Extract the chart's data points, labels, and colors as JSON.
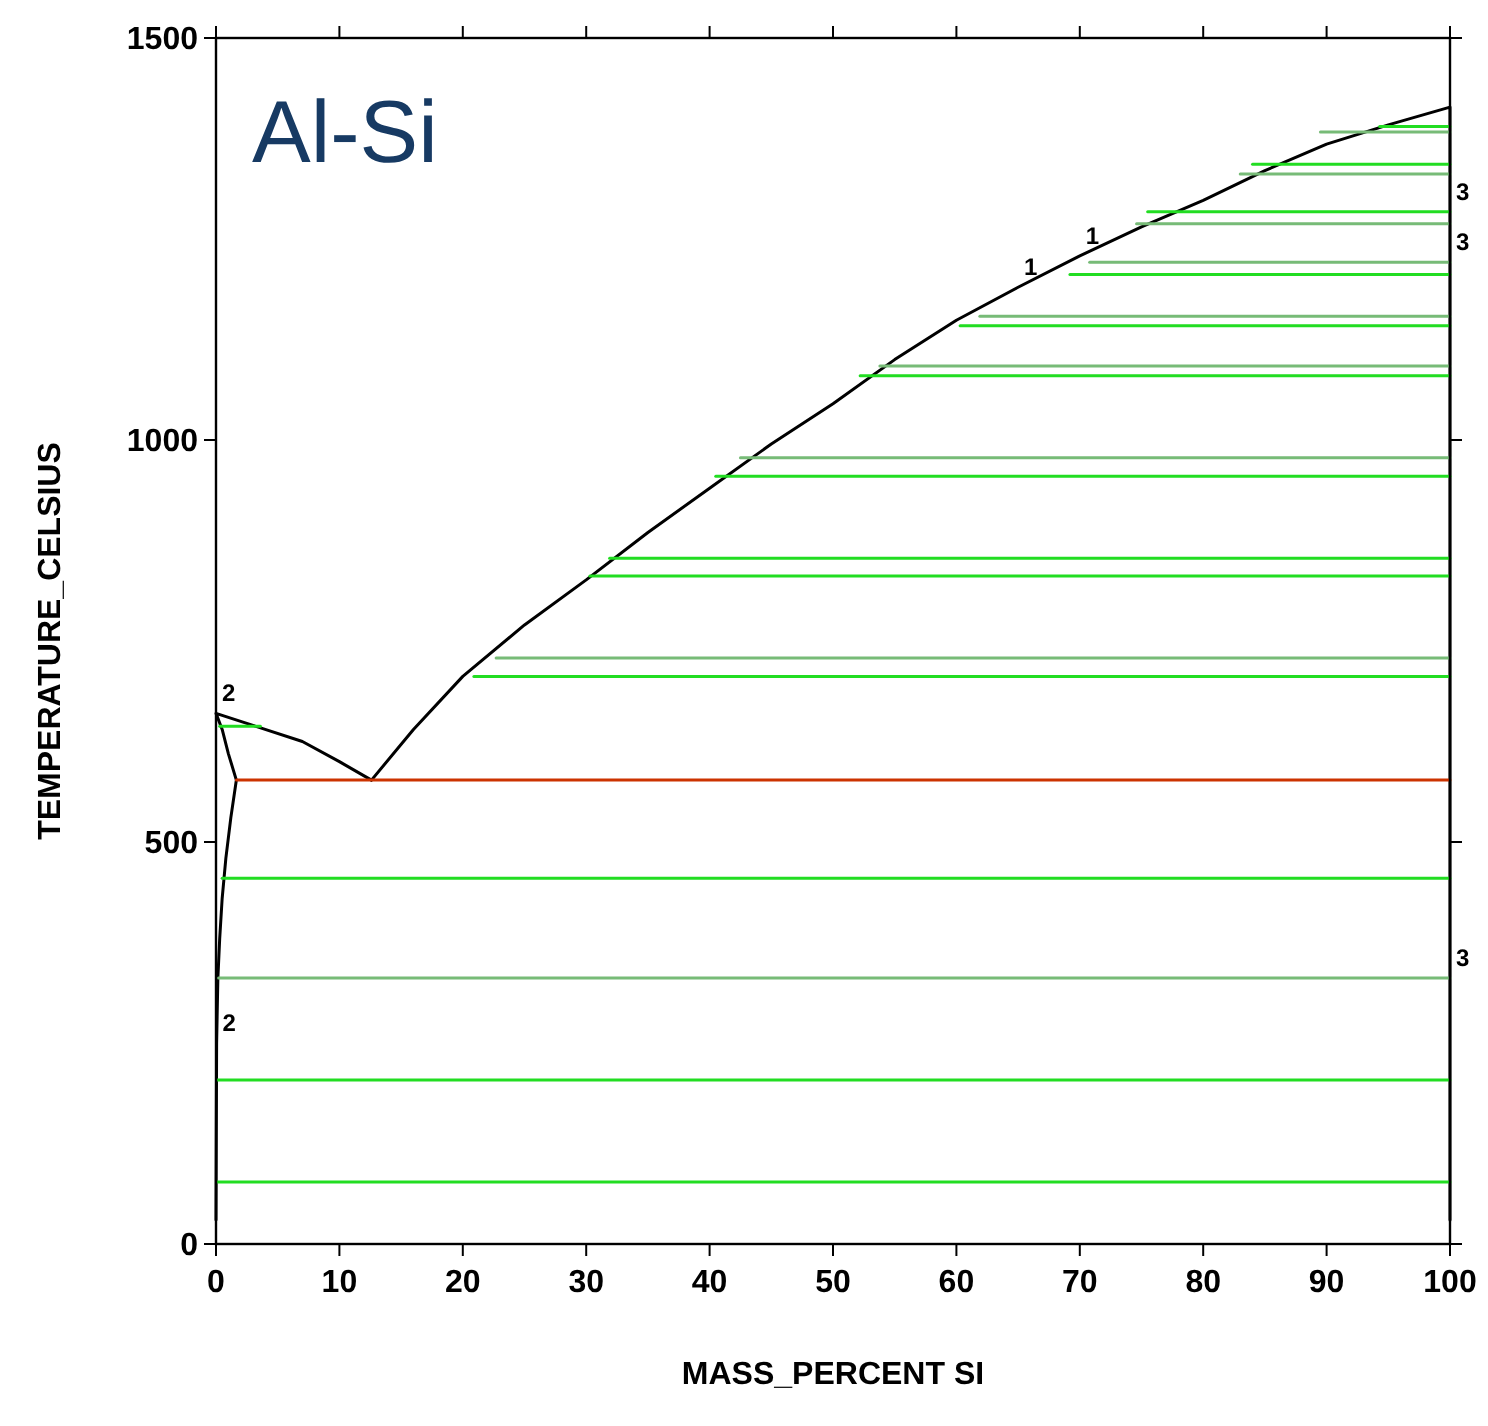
{
  "chart_data": {
    "type": "line",
    "title": "Al-Si",
    "xlabel": "MASS_PERCENT SI",
    "ylabel": "TEMPERATURE_CELSIUS",
    "xlim": [
      0,
      100
    ],
    "ylim": [
      0,
      1500
    ],
    "xticks": [
      0,
      10,
      20,
      30,
      40,
      50,
      60,
      70,
      80,
      90,
      100
    ],
    "yticks": [
      0,
      500,
      1000,
      1500
    ],
    "grid": false,
    "marker": "none",
    "line_style": "solid",
    "series": [
      {
        "color": "#000000",
        "x": [
          12.6,
          16,
          20,
          25,
          30,
          35,
          40,
          45,
          50,
          55,
          60,
          65,
          70,
          75,
          80,
          85,
          90,
          95,
          100,
          100
        ],
        "values": [
          577,
          640,
          706,
          770,
          826,
          885,
          940,
          995,
          1045,
          1100,
          1149,
          1190,
          1229,
          1265,
          1298,
          1335,
          1368,
          1392,
          1414,
          30
        ]
      },
      {
        "color": "#000000",
        "x": [
          12.6,
          10,
          7,
          3,
          0,
          0.5,
          1,
          1.65,
          1.2,
          0.8,
          0.5,
          0.3,
          0.15,
          0.05,
          0
        ],
        "values": [
          577,
          600,
          625,
          645,
          660,
          640,
          610,
          577,
          530,
          480,
          430,
          380,
          330,
          250,
          30
        ]
      },
      {
        "color": "#cc3300",
        "x": [
          1.65,
          100
        ],
        "values": [
          577,
          577
        ]
      },
      {
        "color": "#22dd22",
        "x": [
          94.3,
          100
        ],
        "values": [
          1390,
          1390
        ]
      },
      {
        "color": "#77bb77",
        "x": [
          89.5,
          100
        ],
        "values": [
          1383,
          1383
        ]
      },
      {
        "color": "#22dd22",
        "x": [
          84,
          100
        ],
        "values": [
          1343,
          1343
        ]
      },
      {
        "color": "#77bb77",
        "x": [
          83,
          100
        ],
        "values": [
          1331,
          1331
        ]
      },
      {
        "color": "#22dd22",
        "x": [
          75.5,
          100
        ],
        "values": [
          1284,
          1284
        ]
      },
      {
        "color": "#77bb77",
        "x": [
          74.6,
          100
        ],
        "values": [
          1269,
          1269
        ]
      },
      {
        "color": "#77bb77",
        "x": [
          70.8,
          100
        ],
        "values": [
          1221,
          1221
        ]
      },
      {
        "color": "#22dd22",
        "x": [
          69.2,
          100
        ],
        "values": [
          1206,
          1206
        ]
      },
      {
        "color": "#77bb77",
        "x": [
          61.9,
          100
        ],
        "values": [
          1154,
          1154
        ]
      },
      {
        "color": "#22dd22",
        "x": [
          60.3,
          100
        ],
        "values": [
          1142,
          1142
        ]
      },
      {
        "color": "#77bb77",
        "x": [
          53.8,
          100
        ],
        "values": [
          1092,
          1092
        ]
      },
      {
        "color": "#22dd22",
        "x": [
          52.2,
          100
        ],
        "values": [
          1080,
          1080
        ]
      },
      {
        "color": "#77bb77",
        "x": [
          42.5,
          100
        ],
        "values": [
          978,
          978
        ]
      },
      {
        "color": "#22dd22",
        "x": [
          40.5,
          100
        ],
        "values": [
          955,
          955
        ]
      },
      {
        "color": "#22dd22",
        "x": [
          31.9,
          100
        ],
        "values": [
          853,
          853
        ]
      },
      {
        "color": "#22dd22",
        "x": [
          30.3,
          100
        ],
        "values": [
          831,
          831
        ]
      },
      {
        "color": "#77bb77",
        "x": [
          22.7,
          100
        ],
        "values": [
          729,
          729
        ]
      },
      {
        "color": "#22dd22",
        "x": [
          20.9,
          100
        ],
        "values": [
          706,
          706
        ]
      },
      {
        "color": "#22dd22",
        "x": [
          0.3,
          3.6
        ],
        "values": [
          644,
          644
        ]
      },
      {
        "color": "#22dd22",
        "x": [
          0.5,
          100
        ],
        "values": [
          455,
          455
        ]
      },
      {
        "color": "#77bb77",
        "x": [
          0.2,
          100
        ],
        "values": [
          331,
          331
        ]
      },
      {
        "color": "#22dd22",
        "x": [
          0.1,
          100
        ],
        "values": [
          204,
          204
        ]
      },
      {
        "color": "#22dd22",
        "x": [
          0.05,
          100
        ],
        "values": [
          77,
          77
        ]
      }
    ],
    "annotations": [
      {
        "text": "1",
        "x": 65,
        "y": 1190
      },
      {
        "text": "1",
        "x": 70,
        "y": 1229
      },
      {
        "text": "2",
        "x": 0,
        "y": 660
      },
      {
        "text": "2",
        "x": 0.05,
        "y": 250
      },
      {
        "text": "3",
        "x": 100,
        "y": 1284
      },
      {
        "text": "3",
        "x": 100,
        "y": 1221
      },
      {
        "text": "3",
        "x": 100,
        "y": 331
      }
    ]
  }
}
